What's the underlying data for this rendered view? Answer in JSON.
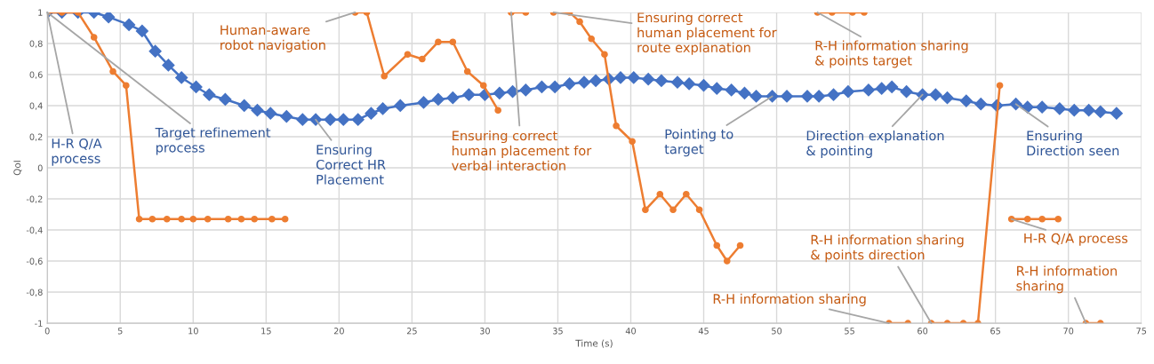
{
  "chart_data": {
    "type": "line",
    "xlabel": "Time (s)",
    "ylabel": "QoI",
    "xlim": [
      0,
      75
    ],
    "xticks": [
      0,
      5,
      10,
      15,
      20,
      25,
      30,
      35,
      40,
      45,
      50,
      55,
      60,
      65,
      70,
      75
    ],
    "ylim": [
      -1,
      1
    ],
    "yticks": [
      -1,
      {
        "value": -0.8,
        "label": "-0,8"
      },
      {
        "value": -0.6,
        "label": "-0,6"
      },
      {
        "value": -0.4,
        "label": "-0,4"
      },
      {
        "value": -0.2,
        "label": "-0,2"
      },
      0,
      {
        "value": 0.2,
        "label": "0,2"
      },
      {
        "value": 0.4,
        "label": "0,4"
      },
      {
        "value": 0.6,
        "label": "0,6"
      },
      {
        "value": 0.8,
        "label": "0,8"
      },
      1
    ],
    "grid": true,
    "series": [
      {
        "color": "#4472c4",
        "marker": "diamond",
        "x": [
          0,
          1.0,
          2.1,
          3.2,
          4.2,
          5.6,
          6.5,
          7.4,
          8.3,
          9.2,
          10.2,
          11.1,
          12.2,
          13.5,
          14.4,
          15.3,
          16.4,
          17.5,
          18.4,
          19.4,
          20.3,
          21.3,
          22.2,
          23.0,
          24.2,
          25.8,
          26.8,
          27.8,
          28.9,
          30.0,
          31.0,
          31.9,
          32.8,
          33.9,
          34.8,
          35.8,
          36.8,
          37.6,
          38.5,
          39.3,
          40.2,
          41.2,
          42.1,
          43.2,
          44.0,
          45.0,
          45.9,
          46.9,
          47.8,
          48.6,
          49.7,
          50.7,
          52.1,
          52.9,
          53.9,
          54.9,
          56.3,
          57.2,
          57.9,
          58.9,
          60.0,
          60.9,
          61.7,
          63.0,
          64.0,
          65.1,
          66.4,
          67.2,
          68.2,
          69.4,
          70.4,
          71.4,
          72.2,
          73.3
        ],
        "values": [
          1,
          1,
          1,
          1,
          0.97,
          0.92,
          0.88,
          0.75,
          0.66,
          0.58,
          0.52,
          0.47,
          0.44,
          0.4,
          0.37,
          0.35,
          0.33,
          0.31,
          0.31,
          0.31,
          0.31,
          0.31,
          0.35,
          0.38,
          0.4,
          0.42,
          0.44,
          0.45,
          0.47,
          0.47,
          0.48,
          0.49,
          0.5,
          0.52,
          0.52,
          0.54,
          0.55,
          0.56,
          0.57,
          0.58,
          0.58,
          0.57,
          0.56,
          0.55,
          0.54,
          0.53,
          0.51,
          0.5,
          0.48,
          0.46,
          0.46,
          0.46,
          0.46,
          0.46,
          0.47,
          0.49,
          0.5,
          0.51,
          0.52,
          0.49,
          0.47,
          0.47,
          0.45,
          0.43,
          0.41,
          0.4,
          0.41,
          0.39,
          0.39,
          0.38,
          0.37,
          0.37,
          0.36,
          0.35
        ]
      },
      {
        "color": "#ed7d31",
        "marker": "circle",
        "x": [
          0,
          1.0,
          2.1,
          3.2,
          4.5,
          5.4,
          6.3,
          7.2,
          8.2,
          9.2,
          10.0,
          11.0,
          12.4,
          13.3,
          14.2,
          15.4,
          16.3,
          18,
          21.1,
          21.9,
          23.1,
          24.7,
          25.7,
          26.8,
          27.8,
          28.8,
          29.9,
          30.9,
          31.3,
          31.8,
          32.8,
          33.7,
          34.7,
          35.8,
          36.5,
          37.3,
          38.2,
          39.0,
          40.1,
          41.0,
          42.0,
          42.9,
          43.8,
          44.7,
          45.9,
          46.6,
          47.5,
          50,
          52.8,
          53.8,
          55.2,
          56.0,
          57,
          57.7,
          59.0,
          59.8,
          60.6,
          61.7,
          62.8,
          63.8,
          65.3,
          65.7,
          66.1,
          67.2,
          68.2,
          69.3,
          70,
          71.2,
          72.2
        ],
        "values": [
          1,
          1,
          1,
          0.84,
          0.62,
          0.53,
          -0.33,
          -0.33,
          -0.33,
          -0.33,
          -0.33,
          -0.33,
          -0.33,
          -0.33,
          -0.33,
          -0.33,
          -0.33,
          null,
          1,
          1,
          0.59,
          0.73,
          0.7,
          0.81,
          0.81,
          0.62,
          0.53,
          0.37,
          null,
          1,
          1,
          null,
          1,
          1,
          0.94,
          0.83,
          0.73,
          0.27,
          0.17,
          -0.27,
          -0.17,
          -0.27,
          -0.17,
          -0.27,
          -0.5,
          -0.6,
          -0.5,
          null,
          1,
          1,
          1,
          1,
          null,
          -1,
          -1,
          null,
          -1,
          -1,
          -1,
          -1,
          0.53,
          null,
          -0.33,
          -0.33,
          -0.33,
          -0.33,
          null,
          -1,
          -1
        ]
      }
    ],
    "annotations": [
      {
        "text": "H-R Q/A\nprocess",
        "x": 0,
        "y": 1
      },
      {
        "text": "Target refinement\nprocess",
        "x": 0,
        "y": 1
      },
      {
        "text": "Ensuring\nCorrect HR\nPlacement",
        "x": 18.4,
        "y": 0.31
      },
      {
        "text": "Human-aware\nrobot navigation",
        "x": 21.1,
        "y": 1
      },
      {
        "text": "Ensuring correct\nhuman placement for\nverbal interaction",
        "x": 31.8,
        "y": 1
      },
      {
        "text": "Ensuring correct\nhuman placement for\nroute explanation",
        "x": 34.7,
        "y": 1
      },
      {
        "text": "R-H information sharing\n& points target",
        "x": 52.8,
        "y": 1
      },
      {
        "text": "Pointing to\ntarget",
        "x": 49.7,
        "y": 0.46
      },
      {
        "text": "Direction explanation\n& pointing",
        "x": 60.0,
        "y": 0.47
      },
      {
        "text": "Ensuring\nDirection seen",
        "x": 66.4,
        "y": 0.41
      },
      {
        "text": "R-H information sharing",
        "x": 57.7,
        "y": -1
      },
      {
        "text": "R-H information sharing\n& points direction",
        "x": 60.6,
        "y": -1
      },
      {
        "text": "H-R Q/A process",
        "x": 66.1,
        "y": -0.33
      },
      {
        "text": "R-H information\nsharing",
        "x": 71.2,
        "y": -1
      }
    ]
  }
}
